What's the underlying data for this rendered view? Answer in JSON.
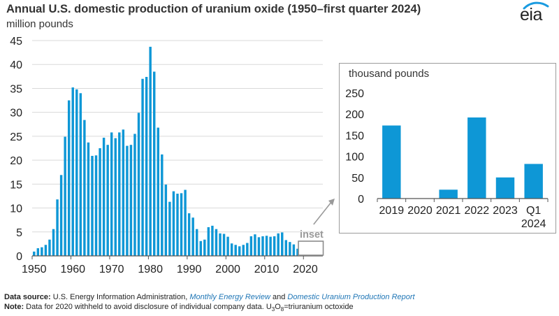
{
  "header": {
    "title": "Annual U.S. domestic production of uranium oxide (1950–first quarter 2024)",
    "unit": "million pounds",
    "logo_text": "eia"
  },
  "colors": {
    "bar": "#0e97d6",
    "axis": "#555555",
    "grid": "#d9d9d9",
    "text": "#222222",
    "link": "#1f76b6",
    "inset_box": "#9b9b9b",
    "logo_wave": "#1a9be0"
  },
  "chart_data": [
    {
      "type": "bar",
      "title": "",
      "ylabel": "million pounds",
      "xlabel": "",
      "ylim": [
        0,
        45
      ],
      "yticks": [
        0,
        5,
        10,
        15,
        20,
        25,
        30,
        35,
        40,
        45
      ],
      "xticks": [
        1950,
        1960,
        1970,
        1980,
        1990,
        2000,
        2010,
        2020
      ],
      "grid": true,
      "annotation": "inset",
      "x": [
        1950,
        1951,
        1952,
        1953,
        1954,
        1955,
        1956,
        1957,
        1958,
        1959,
        1960,
        1961,
        1962,
        1963,
        1964,
        1965,
        1966,
        1967,
        1968,
        1969,
        1970,
        1971,
        1972,
        1973,
        1974,
        1975,
        1976,
        1977,
        1978,
        1979,
        1980,
        1981,
        1982,
        1983,
        1984,
        1985,
        1986,
        1987,
        1988,
        1989,
        1990,
        1991,
        1992,
        1993,
        1994,
        1995,
        1996,
        1997,
        1998,
        1999,
        2000,
        2001,
        2002,
        2003,
        2004,
        2005,
        2006,
        2007,
        2008,
        2009,
        2010,
        2011,
        2012,
        2013,
        2014,
        2015,
        2016,
        2017,
        2018,
        2019,
        2020,
        2021,
        2022,
        2023,
        2024
      ],
      "values": [
        0.9,
        1.6,
        1.8,
        2.3,
        3.4,
        5.6,
        11.8,
        16.9,
        24.9,
        32.5,
        35.2,
        34.8,
        34.0,
        28.4,
        23.7,
        20.9,
        21.0,
        22.5,
        24.7,
        23.2,
        25.8,
        24.6,
        25.8,
        26.4,
        23.0,
        23.2,
        25.5,
        29.9,
        37.0,
        37.4,
        43.7,
        38.5,
        26.8,
        21.2,
        14.9,
        11.3,
        13.5,
        13.0,
        13.1,
        13.8,
        8.9,
        8.0,
        5.6,
        3.1,
        3.4,
        6.0,
        6.3,
        5.6,
        4.7,
        4.6,
        4.0,
        2.6,
        2.3,
        2.0,
        2.3,
        2.7,
        4.1,
        4.5,
        3.9,
        4.1,
        4.2,
        4.0,
        4.1,
        4.7,
        4.9,
        3.3,
        2.9,
        2.4,
        1.5,
        0.17,
        0,
        0.02,
        0.19,
        0.05,
        0.08
      ]
    },
    {
      "type": "bar",
      "title": "",
      "ylabel": "thousand pounds",
      "xlabel": "",
      "ylim": [
        0,
        250
      ],
      "yticks": [
        0,
        50,
        100,
        150,
        200,
        250
      ],
      "grid": false,
      "categories": [
        "2019",
        "2020",
        "2021",
        "2022",
        "2023",
        "Q1 2024"
      ],
      "category_lines": [
        [
          "2019"
        ],
        [
          "2020"
        ],
        [
          "2021"
        ],
        [
          "2022"
        ],
        [
          "2023"
        ],
        [
          "Q1",
          "2024"
        ]
      ],
      "values": [
        173,
        0,
        21,
        192,
        50,
        82
      ]
    }
  ],
  "footer": {
    "source_label": "Data source:",
    "source_prefix": "U.S. Energy Information Administration,",
    "source_link1": "Monthly Energy Review",
    "source_and": "and",
    "source_link2": "Domestic Uranium Production Report",
    "note_label": "Note:",
    "note_text": "Data for 2020 withheld to avoid disclosure of individual company data. U",
    "note_sub1": "3",
    "note_o": "O",
    "note_sub2": "8",
    "note_tail": "=triuranium octoxide"
  }
}
